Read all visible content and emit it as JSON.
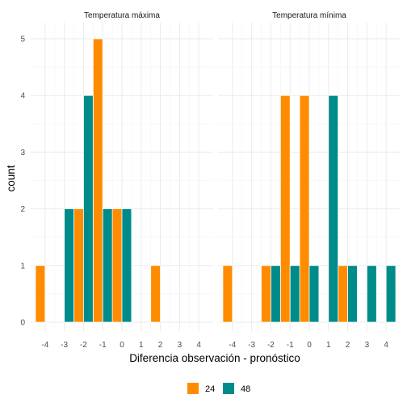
{
  "chart_data": {
    "type": "bar",
    "subtype": "faceted-dodged-histogram",
    "xlabel": "Diferencia observación - pronóstico",
    "ylabel": "count",
    "ylim": [
      0,
      5
    ],
    "y_ticks": [
      0,
      1,
      2,
      3,
      4,
      5
    ],
    "x_ticks": [
      -4,
      -3,
      -2,
      -1,
      0,
      1,
      2,
      3,
      4
    ],
    "x_tick_labels": [
      "-4",
      "-3",
      "-2",
      "-1",
      "0",
      "1",
      "2",
      "3",
      "4"
    ],
    "bin_width": 1,
    "grid": true,
    "legend": {
      "placement": "bottom",
      "entries": [
        {
          "label": "24",
          "color": "#FF8C00"
        },
        {
          "label": "48",
          "color": "#008B8B"
        }
      ]
    },
    "facets": [
      {
        "title": "Temperatura máxima",
        "series": [
          {
            "group": "24",
            "x": [
              -4,
              -2,
              -1,
              0,
              2
            ],
            "values": [
              1,
              2,
              5,
              2,
              1
            ]
          },
          {
            "group": "48",
            "x": [
              -3,
              -2,
              -1,
              0
            ],
            "values": [
              2,
              4,
              2,
              2
            ]
          }
        ]
      },
      {
        "title": "Temperatura mínima",
        "series": [
          {
            "group": "24",
            "x": [
              -4,
              -2,
              -1,
              0,
              2
            ],
            "values": [
              1,
              1,
              4,
              4,
              1
            ]
          },
          {
            "group": "48",
            "x": [
              -2,
              -1,
              0,
              1,
              2,
              3,
              4
            ],
            "values": [
              1,
              1,
              1,
              4,
              1,
              1,
              1
            ]
          }
        ]
      }
    ]
  }
}
